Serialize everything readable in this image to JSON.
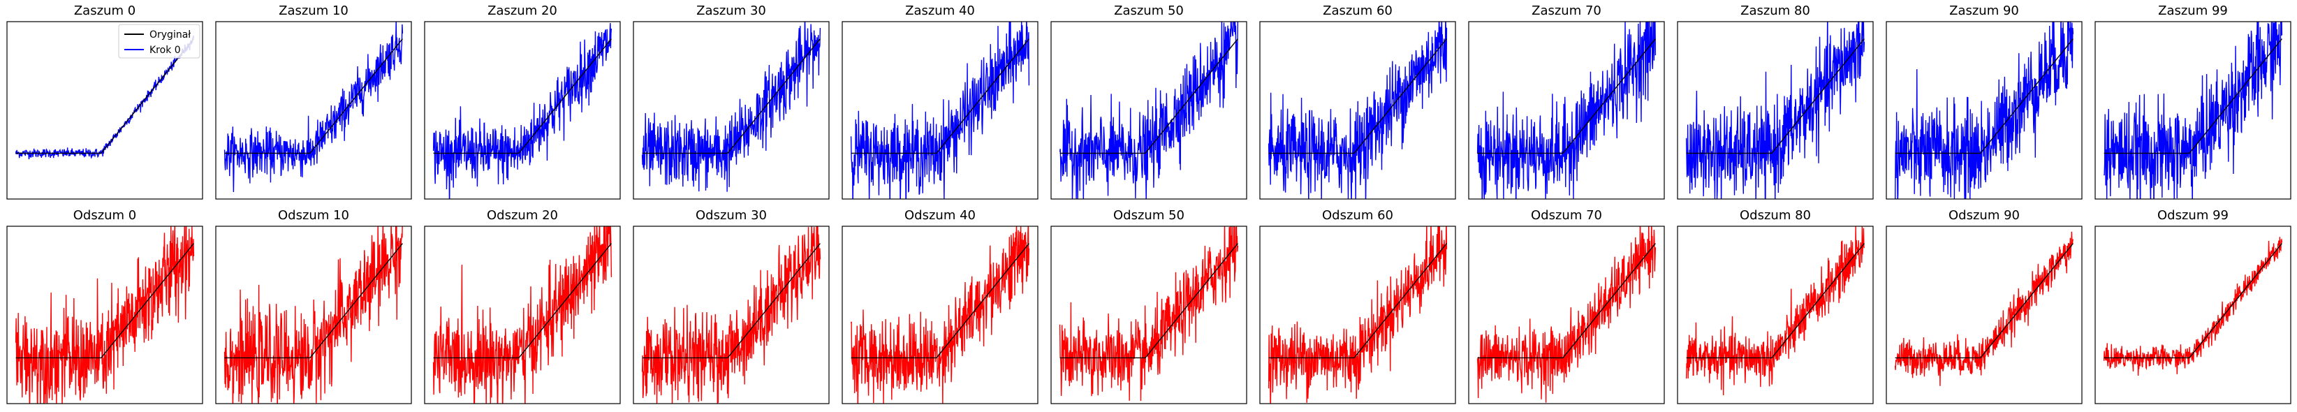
{
  "chart_data": [
    {
      "type": "line",
      "rows": [
        {
          "row_id": "noise",
          "color": "#0000ff",
          "panels": [
            {
              "title": "Zaszum 0",
              "step": 0,
              "noise": 0.04
            },
            {
              "title": "Zaszum 10",
              "step": 10,
              "noise": 0.2
            },
            {
              "title": "Zaszum 20",
              "step": 20,
              "noise": 0.26
            },
            {
              "title": "Zaszum 30",
              "step": 30,
              "noise": 0.3
            },
            {
              "title": "Zaszum 40",
              "step": 40,
              "noise": 0.33
            },
            {
              "title": "Zaszum 50",
              "step": 50,
              "noise": 0.35
            },
            {
              "title": "Zaszum 60",
              "step": 60,
              "noise": 0.37
            },
            {
              "title": "Zaszum 70",
              "step": 70,
              "noise": 0.38
            },
            {
              "title": "Zaszum 80",
              "step": 80,
              "noise": 0.4
            },
            {
              "title": "Zaszum 90",
              "step": 90,
              "noise": 0.41
            },
            {
              "title": "Zaszum 99",
              "step": 99,
              "noise": 0.42
            }
          ]
        },
        {
          "row_id": "denoise",
          "color": "#ff0000",
          "panels": [
            {
              "title": "Odszum 0",
              "step": 0,
              "noise": 0.42
            },
            {
              "title": "Odszum 10",
              "step": 10,
              "noise": 0.4
            },
            {
              "title": "Odszum 20",
              "step": 20,
              "noise": 0.38
            },
            {
              "title": "Odszum 30",
              "step": 30,
              "noise": 0.36
            },
            {
              "title": "Odszum 40",
              "step": 40,
              "noise": 0.34
            },
            {
              "title": "Odszum 50",
              "step": 50,
              "noise": 0.32
            },
            {
              "title": "Odszum 60",
              "step": 60,
              "noise": 0.3
            },
            {
              "title": "Odszum 70",
              "step": 70,
              "noise": 0.26
            },
            {
              "title": "Odszum 80",
              "step": 80,
              "noise": 0.22
            },
            {
              "title": "Odszum 90",
              "step": 90,
              "noise": 0.16
            },
            {
              "title": "Odszum 99",
              "step": 99,
              "noise": 0.1
            }
          ]
        }
      ],
      "original": {
        "name": "Oryginał",
        "color": "#000000",
        "x_range": [
          0,
          1
        ],
        "flat_until": 0.48,
        "flat_value": 0.0,
        "end_value": 2.0
      },
      "legend": {
        "placement": "top-right",
        "entries": [
          {
            "label": "Oryginał",
            "color": "#000000"
          },
          {
            "label": "Krok 0",
            "color": "#0000ff"
          }
        ]
      },
      "ylim": [
        -0.8,
        2.3
      ],
      "grid": false,
      "axis_ticks": false,
      "samples_per_panel": 500
    }
  ]
}
